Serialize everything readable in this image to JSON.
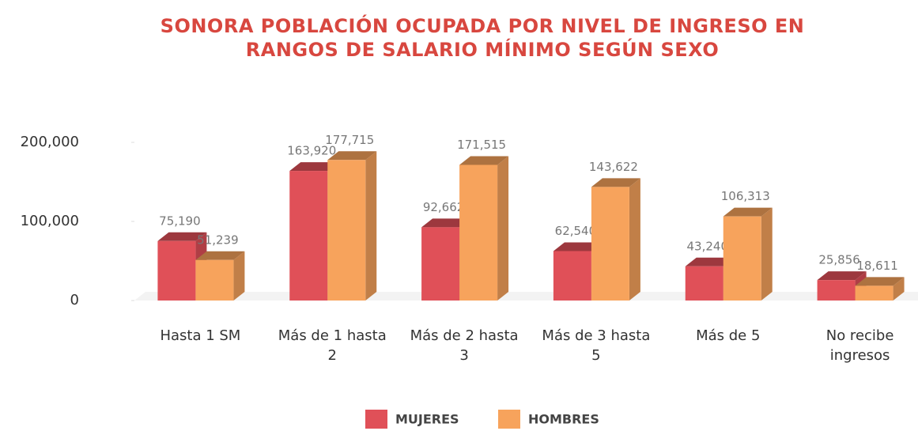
{
  "chart_data": {
    "type": "bar3d",
    "title": "SONORA POBLACIÓN OCUPADA POR NIVEL DE INGRESO EN RANGOS DE SALARIO MÍNIMO SEGÚN SEXO",
    "categories": [
      "Hasta 1 SM",
      "Más de 1 hasta 2",
      "Más de 2 hasta 3",
      "Más de 3 hasta 5",
      "Más de 5",
      "No recibe ingresos"
    ],
    "series": [
      {
        "name": "MUJERES",
        "color": "#e05058",
        "values": [
          75190,
          163920,
          92662,
          62540,
          43240,
          25856
        ],
        "value_labels": [
          "75,190",
          "163,920",
          "92,662",
          "62,540",
          "43,240",
          "25,856"
        ]
      },
      {
        "name": "HOMBRES",
        "color": "#f7a35c",
        "values": [
          51239,
          177715,
          171515,
          143622,
          106313,
          18611
        ],
        "value_labels": [
          "51,239",
          "177,715",
          "171,515",
          "143,622",
          "106,313",
          "18,611"
        ]
      }
    ],
    "ylim": [
      0,
      230000
    ],
    "yticks": [
      0,
      {
        "value": 100000,
        "label": "100,000"
      },
      {
        "value": 200000,
        "label": "200,000"
      }
    ],
    "legend": "bottom"
  }
}
